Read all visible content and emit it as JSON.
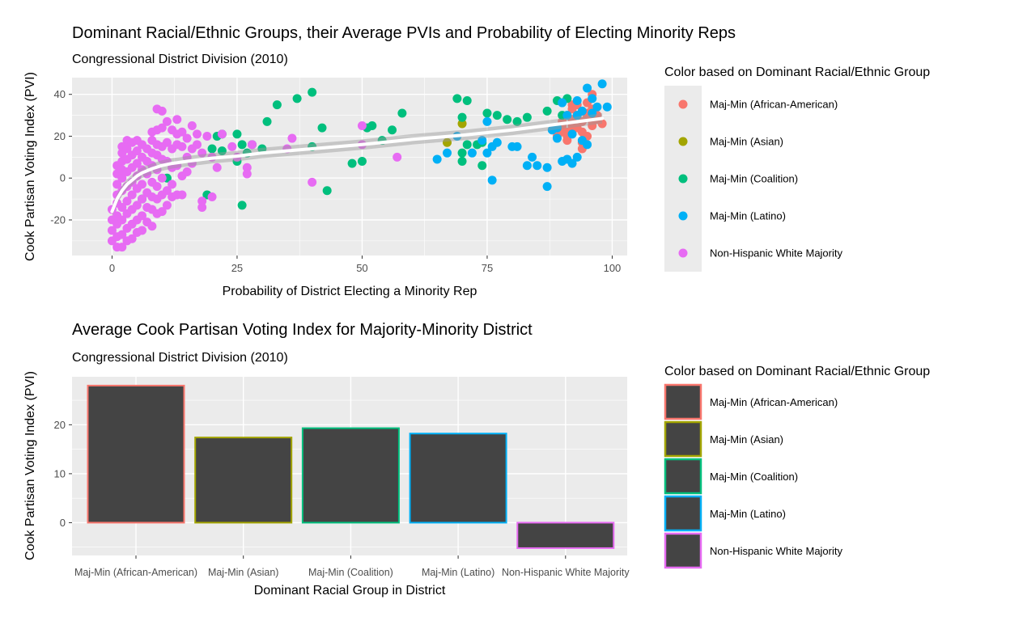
{
  "colors": {
    "Maj-Min (African-American)": "#F8766D",
    "Maj-Min (Asian)": "#A3A500",
    "Maj-Min (Coalition)": "#00BF7D",
    "Maj-Min (Latino)": "#00B0F6",
    "Non-Hispanic White Majority": "#E76BF3",
    "panel_bg": "#EBEBEB",
    "grid": "#FFFFFF",
    "bar_fill": "#444444"
  },
  "chart_data": [
    {
      "type": "scatter",
      "title": "Dominant Racial/Ethnic Groups, their Average PVIs and Probability of Electing Minority Reps",
      "subtitle": "Congressional District Division (2010)",
      "xlabel": "Probability of District Electing a Minority Rep",
      "ylabel": "Cook Partisan Voting Index (PVI)",
      "xlim": [
        -8,
        103
      ],
      "ylim": [
        -37,
        48
      ],
      "xticks": [
        0,
        25,
        50,
        75,
        100
      ],
      "yticks": [
        -20,
        0,
        20,
        40
      ],
      "grid": true,
      "legend_title": "Color based on Dominant Racial/Ethnic Group",
      "legend_position": "right",
      "series": [
        {
          "name": "Maj-Min (African-American)",
          "points": [
            [
              89,
              20
            ],
            [
              89,
              22
            ],
            [
              90,
              25
            ],
            [
              90,
              27
            ],
            [
              91,
              18
            ],
            [
              91,
              20
            ],
            [
              91,
              22
            ],
            [
              91,
              30
            ],
            [
              92,
              25
            ],
            [
              92,
              28
            ],
            [
              92,
              33
            ],
            [
              93,
              24
            ],
            [
              93,
              30
            ],
            [
              93,
              35
            ],
            [
              94,
              27
            ],
            [
              94,
              22
            ],
            [
              94,
              14
            ],
            [
              94,
              32
            ],
            [
              95,
              29
            ],
            [
              95,
              31
            ],
            [
              95,
              20
            ],
            [
              95,
              36
            ],
            [
              96,
              40
            ],
            [
              96,
              25
            ],
            [
              96,
              33
            ],
            [
              96,
              27
            ],
            [
              97,
              30
            ],
            [
              97,
              28
            ],
            [
              98,
              26
            ],
            [
              94,
              17
            ],
            [
              92,
              35
            ],
            [
              90,
              22
            ]
          ]
        },
        {
          "name": "Maj-Min (Asian)",
          "points": [
            [
              67,
              17
            ],
            [
              70,
              26
            ]
          ]
        },
        {
          "name": "Maj-Min (Coalition)",
          "points": [
            [
              6,
              -10
            ],
            [
              11,
              0
            ],
            [
              19,
              -8
            ],
            [
              20,
              14
            ],
            [
              21,
              20
            ],
            [
              22,
              21
            ],
            [
              22,
              13
            ],
            [
              25,
              21
            ],
            [
              25,
              8
            ],
            [
              26,
              -13
            ],
            [
              26,
              16
            ],
            [
              27,
              12
            ],
            [
              28,
              16
            ],
            [
              30,
              14
            ],
            [
              31,
              27
            ],
            [
              33,
              35
            ],
            [
              37,
              38
            ],
            [
              40,
              41
            ],
            [
              40,
              15
            ],
            [
              42,
              24
            ],
            [
              43,
              -6
            ],
            [
              48,
              7
            ],
            [
              50,
              8
            ],
            [
              51,
              24
            ],
            [
              52,
              25
            ],
            [
              54,
              18
            ],
            [
              56,
              23
            ],
            [
              58,
              31
            ],
            [
              69,
              38
            ],
            [
              70,
              8
            ],
            [
              70,
              12
            ],
            [
              70,
              29
            ],
            [
              71,
              37
            ],
            [
              73,
              16
            ],
            [
              74,
              6
            ],
            [
              74,
              17
            ],
            [
              75,
              31
            ],
            [
              77,
              30
            ],
            [
              79,
              28
            ],
            [
              81,
              27
            ],
            [
              83,
              29
            ],
            [
              87,
              32
            ],
            [
              89,
              37
            ],
            [
              90,
              30
            ],
            [
              91,
              38
            ],
            [
              71,
              16
            ]
          ]
        },
        {
          "name": "Maj-Min (Latino)",
          "points": [
            [
              65,
              9
            ],
            [
              67,
              12
            ],
            [
              69,
              20
            ],
            [
              72,
              12
            ],
            [
              74,
              18
            ],
            [
              75,
              27
            ],
            [
              75,
              12
            ],
            [
              76,
              -1
            ],
            [
              76,
              15
            ],
            [
              77,
              17
            ],
            [
              80,
              15
            ],
            [
              81,
              15
            ],
            [
              83,
              6
            ],
            [
              84,
              10
            ],
            [
              85,
              6
            ],
            [
              87,
              -4
            ],
            [
              87,
              5
            ],
            [
              88,
              23
            ],
            [
              89,
              19
            ],
            [
              89,
              24
            ],
            [
              90,
              8
            ],
            [
              90,
              36
            ],
            [
              91,
              9
            ],
            [
              91,
              30
            ],
            [
              92,
              7
            ],
            [
              92,
              21
            ],
            [
              93,
              10
            ],
            [
              93,
              30
            ],
            [
              93,
              37
            ],
            [
              94,
              18
            ],
            [
              94,
              32
            ],
            [
              95,
              16
            ],
            [
              95,
              43
            ],
            [
              96,
              38
            ],
            [
              96,
              31
            ],
            [
              97,
              34
            ],
            [
              98,
              45
            ],
            [
              99,
              34
            ]
          ]
        },
        {
          "name": "Non-Hispanic White Majority",
          "points": [
            [
              0,
              -30
            ],
            [
              0,
              -25
            ],
            [
              0,
              -20
            ],
            [
              0,
              -15
            ],
            [
              1,
              -33
            ],
            [
              1,
              -28
            ],
            [
              1,
              -22
            ],
            [
              1,
              -18
            ],
            [
              1,
              -12
            ],
            [
              1,
              -8
            ],
            [
              1,
              -3
            ],
            [
              1,
              2
            ],
            [
              1,
              6
            ],
            [
              2,
              -33
            ],
            [
              2,
              -27
            ],
            [
              2,
              -20
            ],
            [
              2,
              -14
            ],
            [
              2,
              -6
            ],
            [
              2,
              0
            ],
            [
              2,
              4
            ],
            [
              2,
              8
            ],
            [
              2,
              12
            ],
            [
              2,
              15
            ],
            [
              3,
              -30
            ],
            [
              3,
              -24
            ],
            [
              3,
              -17
            ],
            [
              3,
              -11
            ],
            [
              3,
              -4
            ],
            [
              3,
              3
            ],
            [
              3,
              9
            ],
            [
              3,
              14
            ],
            [
              3,
              18
            ],
            [
              4,
              -29
            ],
            [
              4,
              -22
            ],
            [
              4,
              -15
            ],
            [
              4,
              -8
            ],
            [
              4,
              -2
            ],
            [
              4,
              5
            ],
            [
              4,
              11
            ],
            [
              4,
              17
            ],
            [
              5,
              -26
            ],
            [
              5,
              -20
            ],
            [
              5,
              -13
            ],
            [
              5,
              -5
            ],
            [
              5,
              1
            ],
            [
              5,
              7
            ],
            [
              5,
              13
            ],
            [
              5,
              18
            ],
            [
              6,
              -25
            ],
            [
              6,
              -18
            ],
            [
              6,
              -10
            ],
            [
              6,
              -3
            ],
            [
              6,
              4
            ],
            [
              6,
              10
            ],
            [
              6,
              16
            ],
            [
              7,
              -21
            ],
            [
              7,
              -14
            ],
            [
              7,
              -7
            ],
            [
              7,
              2
            ],
            [
              7,
              8
            ],
            [
              7,
              14
            ],
            [
              8,
              -23
            ],
            [
              8,
              -15
            ],
            [
              8,
              -9
            ],
            [
              8,
              -2
            ],
            [
              8,
              6
            ],
            [
              8,
              12
            ],
            [
              8,
              18
            ],
            [
              8,
              22
            ],
            [
              9,
              -17
            ],
            [
              9,
              -10
            ],
            [
              9,
              -4
            ],
            [
              9,
              4
            ],
            [
              9,
              11
            ],
            [
              9,
              16
            ],
            [
              9,
              23
            ],
            [
              9,
              33
            ],
            [
              10,
              -16
            ],
            [
              10,
              -8
            ],
            [
              10,
              0
            ],
            [
              10,
              9
            ],
            [
              10,
              15
            ],
            [
              10,
              24
            ],
            [
              10,
              32
            ],
            [
              11,
              -13
            ],
            [
              11,
              -6
            ],
            [
              11,
              8
            ],
            [
              11,
              17
            ],
            [
              11,
              27
            ],
            [
              12,
              -9
            ],
            [
              12,
              -3
            ],
            [
              12,
              5
            ],
            [
              12,
              14
            ],
            [
              12,
              23
            ],
            [
              13,
              -8
            ],
            [
              13,
              6
            ],
            [
              13,
              16
            ],
            [
              13,
              21
            ],
            [
              13,
              28
            ],
            [
              14,
              -8
            ],
            [
              14,
              1
            ],
            [
              14,
              15
            ],
            [
              14,
              22
            ],
            [
              15,
              3
            ],
            [
              15,
              10
            ],
            [
              15,
              19
            ],
            [
              16,
              7
            ],
            [
              16,
              14
            ],
            [
              16,
              25
            ],
            [
              17,
              16
            ],
            [
              17,
              21
            ],
            [
              18,
              -14
            ],
            [
              18,
              -11
            ],
            [
              18,
              12
            ],
            [
              19,
              20
            ],
            [
              20,
              10
            ],
            [
              20,
              -9
            ],
            [
              21,
              5
            ],
            [
              22,
              21
            ],
            [
              24,
              15
            ],
            [
              25,
              10
            ],
            [
              27,
              5
            ],
            [
              27,
              2
            ],
            [
              28,
              16
            ],
            [
              35,
              14
            ],
            [
              36,
              19
            ],
            [
              40,
              -2
            ],
            [
              50,
              16
            ],
            [
              50,
              25
            ],
            [
              57,
              10
            ]
          ]
        }
      ],
      "trend_line": [
        [
          0,
          -16
        ],
        [
          1,
          -10
        ],
        [
          2,
          -6
        ],
        [
          3,
          -3
        ],
        [
          4,
          -1
        ],
        [
          5,
          1
        ],
        [
          6,
          2.5
        ],
        [
          8,
          4.5
        ],
        [
          10,
          6
        ],
        [
          12,
          7
        ],
        [
          15,
          8
        ],
        [
          20,
          9.5
        ],
        [
          25,
          10.5
        ],
        [
          30,
          12
        ],
        [
          40,
          14
        ],
        [
          50,
          16
        ],
        [
          60,
          18.5
        ],
        [
          70,
          20.5
        ],
        [
          80,
          23
        ],
        [
          90,
          26
        ],
        [
          98,
          28.5
        ]
      ]
    },
    {
      "type": "bar",
      "title": "Average Cook Partisan Voting Index for Majority-Minority District",
      "subtitle": "Congressional District Division (2010)",
      "xlabel": "Dominant Racial Group in District",
      "ylabel": "Cook Partisan Voting Index (PVI)",
      "categories": [
        "Maj-Min (African-American)",
        "Maj-Min (Asian)",
        "Maj-Min (Coalition)",
        "Maj-Min (Latino)",
        "Non-Hispanic White Majority"
      ],
      "values": [
        28,
        17.4,
        19.3,
        18.2,
        -5.2
      ],
      "ylim": [
        -6.7,
        29.8
      ],
      "yticks": [
        0,
        10,
        20
      ],
      "grid": true,
      "legend_title": "Color based on Dominant Racial/Ethnic Group",
      "legend_position": "right"
    }
  ]
}
